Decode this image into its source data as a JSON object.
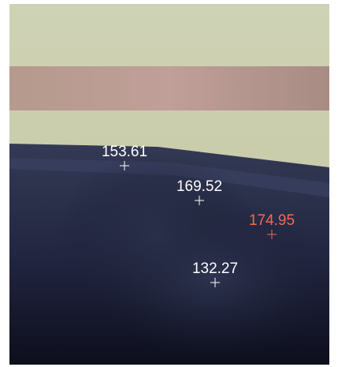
{
  "measurements": [
    {
      "label": "153.61",
      "color": "#ffffff"
    },
    {
      "label": "169.52",
      "color": "#ffffff"
    },
    {
      "label": "174.95",
      "color": "#f26a4f"
    },
    {
      "label": "132.27",
      "color": "#ffffff"
    }
  ]
}
